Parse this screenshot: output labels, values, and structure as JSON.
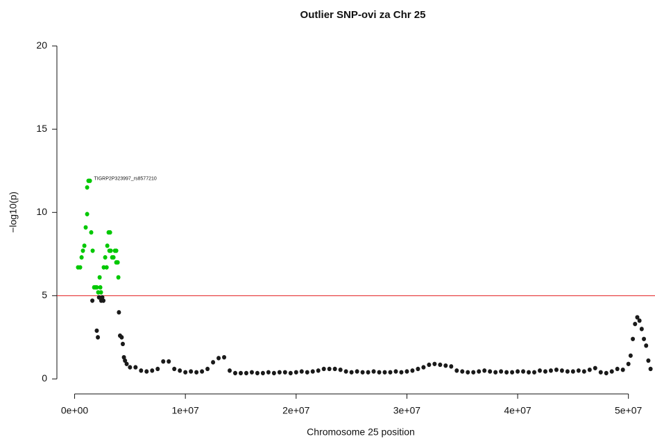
{
  "chart_data": {
    "type": "scatter",
    "title": "Outlier SNP-ovi za Chr 25",
    "xlabel": "Chromosome 25 position",
    "ylabel": "−log10(p)",
    "xlim": [
      -1600000,
      52400000
    ],
    "ylim": [
      -0.9,
      20.8
    ],
    "xticks": [
      {
        "value": 0,
        "label": "0e+00"
      },
      {
        "value": 10000000,
        "label": "1e+07"
      },
      {
        "value": 20000000,
        "label": "2e+07"
      },
      {
        "value": 30000000,
        "label": "3e+07"
      },
      {
        "value": 40000000,
        "label": "4e+07"
      },
      {
        "value": 50000000,
        "label": "5e+07"
      }
    ],
    "yticks": [
      0,
      5,
      10,
      15,
      20
    ],
    "hline": 5,
    "hline_color": "#e31a1c",
    "annotation": {
      "text": "TIGRP2P323997_rs8577210",
      "x": 1250000,
      "y": 11.9
    },
    "series": [
      {
        "color": "#00c800",
        "x": [
          310000,
          500000,
          630000,
          750000,
          880000,
          1000000,
          1130000,
          1130000,
          1250000,
          1380000,
          1500000,
          1630000,
          1760000,
          1880000,
          2000000,
          2130000,
          2260000,
          2320000,
          2380000,
          2630000,
          2760000,
          2890000,
          2950000,
          3070000,
          3200000,
          3140000,
          3260000,
          3390000,
          3510000,
          3640000,
          3760000,
          3760000,
          3890000,
          3950000
        ],
        "values": [
          6.7,
          6.7,
          7.3,
          7.7,
          8.0,
          9.1,
          9.9,
          11.5,
          11.9,
          11.9,
          8.8,
          7.7,
          5.5,
          5.5,
          5.5,
          5.2,
          6.1,
          5.5,
          5.2,
          6.7,
          7.3,
          6.7,
          8.0,
          8.8,
          8.8,
          7.7,
          7.7,
          7.3,
          7.3,
          7.7,
          7.7,
          7.0,
          7.0,
          6.1
        ]
      },
      {
        "color": "#1a1a1a",
        "x": [
          1600000,
          2000000,
          2100000,
          2200000,
          2400000,
          2500000,
          2600000,
          4000000,
          4100000,
          4250000,
          4350000,
          4450000,
          4550000,
          4700000,
          5000000,
          5500000,
          6000000,
          6500000,
          7000000,
          7500000,
          8000000,
          8500000,
          9000000,
          9500000,
          10000000,
          10500000,
          11000000,
          11500000,
          12000000,
          12500000,
          13000000,
          13500000,
          14000000,
          14500000,
          15000000,
          15500000,
          16000000,
          16500000,
          17000000,
          17500000,
          18000000,
          18500000,
          19000000,
          19500000,
          20000000,
          20500000,
          21000000,
          21500000,
          22000000,
          22500000,
          23000000,
          23500000,
          24000000,
          24500000,
          25000000,
          25500000,
          26000000,
          26500000,
          27000000,
          27500000,
          28000000,
          28500000,
          29000000,
          29500000,
          30000000,
          30500000,
          31000000,
          31500000,
          32000000,
          32500000,
          33000000,
          33500000,
          34000000,
          34500000,
          35000000,
          35500000,
          36000000,
          36500000,
          37000000,
          37500000,
          38000000,
          38500000,
          39000000,
          39500000,
          40000000,
          40500000,
          41000000,
          41500000,
          42000000,
          42500000,
          43000000,
          43500000,
          44000000,
          44500000,
          45000000,
          45500000,
          46000000,
          46500000,
          47000000,
          47500000,
          48000000,
          48500000,
          49000000,
          49500000,
          50000000,
          50200000,
          50400000,
          50600000,
          50800000,
          51000000,
          51200000,
          51400000,
          51600000,
          51800000,
          52000000
        ],
        "values": [
          4.7,
          2.9,
          2.5,
          4.9,
          4.7,
          4.9,
          4.7,
          4.0,
          2.6,
          2.5,
          2.1,
          1.3,
          1.1,
          0.9,
          0.7,
          0.7,
          0.5,
          0.45,
          0.5,
          0.6,
          1.05,
          1.05,
          0.6,
          0.5,
          0.4,
          0.45,
          0.4,
          0.45,
          0.6,
          1.0,
          1.25,
          1.3,
          0.5,
          0.35,
          0.35,
          0.35,
          0.4,
          0.35,
          0.35,
          0.4,
          0.35,
          0.4,
          0.4,
          0.35,
          0.4,
          0.45,
          0.4,
          0.45,
          0.5,
          0.6,
          0.6,
          0.6,
          0.55,
          0.45,
          0.4,
          0.45,
          0.4,
          0.4,
          0.45,
          0.4,
          0.4,
          0.4,
          0.45,
          0.4,
          0.45,
          0.5,
          0.6,
          0.7,
          0.85,
          0.9,
          0.85,
          0.8,
          0.75,
          0.5,
          0.45,
          0.4,
          0.4,
          0.45,
          0.5,
          0.45,
          0.4,
          0.45,
          0.4,
          0.4,
          0.45,
          0.45,
          0.4,
          0.4,
          0.5,
          0.45,
          0.5,
          0.55,
          0.5,
          0.45,
          0.45,
          0.5,
          0.45,
          0.55,
          0.65,
          0.4,
          0.35,
          0.45,
          0.6,
          0.55,
          0.9,
          1.4,
          2.4,
          3.3,
          3.7,
          3.5,
          3.0,
          2.4,
          2.0,
          1.1,
          0.6
        ]
      }
    ]
  }
}
